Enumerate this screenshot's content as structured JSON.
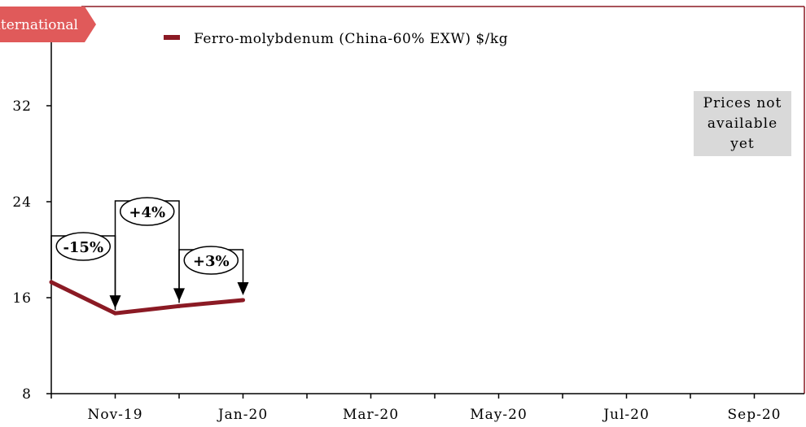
{
  "tag": {
    "label": "International",
    "color": "#e05a5a"
  },
  "legend": {
    "label": "Ferro-molybdenum (China-60% EXW) $/kg"
  },
  "note": {
    "lines": [
      "Prices not",
      "available",
      "yet"
    ],
    "background": "#d9d9d9"
  },
  "colors": {
    "series": "#8b1a24",
    "frame": "#8b1a24",
    "axis": "#000000"
  },
  "chart_data": {
    "type": "line",
    "x": [
      "Oct-19",
      "Nov-19",
      "Dec-19",
      "Jan-20"
    ],
    "x_ticks": [
      "Nov-19",
      "Jan-20",
      "Mar-20",
      "May-20",
      "Jul-20",
      "Sep-20"
    ],
    "series": [
      {
        "name": "Ferro-molybdenum (China-60% EXW) $/kg",
        "values": [
          17.3,
          14.7,
          15.3,
          15.8
        ]
      }
    ],
    "ylim": [
      8,
      40
    ],
    "yticks": [
      8,
      16,
      24,
      32
    ],
    "annotations": [
      {
        "label": "-15%",
        "month": "Nov-19"
      },
      {
        "label": "+4%",
        "month": "Dec-19"
      },
      {
        "label": "+3%",
        "month": "Jan-20"
      }
    ],
    "xlabel": "",
    "ylabel": "",
    "grid": false,
    "legend_position": "top"
  }
}
